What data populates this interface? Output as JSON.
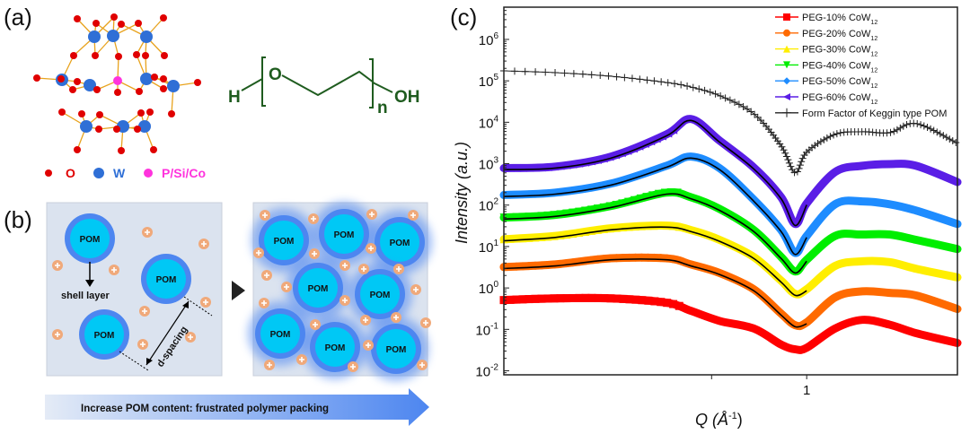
{
  "panel_a": {
    "label": "(a)",
    "legend": [
      {
        "symbol": "O",
        "color": "#e00000"
      },
      {
        "symbol": "W",
        "color": "#2f6fd6"
      },
      {
        "symbol": "P/Si/Co",
        "color": "#ff33dd"
      }
    ],
    "peg": {
      "left": "H",
      "oxygen": "O",
      "right": "OH",
      "repeat": "n",
      "color": "#1f5c1f"
    }
  },
  "panel_b": {
    "label": "(b)",
    "particle_label": "POM",
    "shell_label": "shell layer",
    "spacing_label": "d-spacing",
    "banner": "Increase POM content:  frustrated polymer packing",
    "colors": {
      "core": "#00c8f5",
      "shell": "#4d86f0",
      "ion": "#f0a97a",
      "box": "#dbe3ef"
    }
  },
  "panel_c": {
    "label": "(c)"
  },
  "chart_data": {
    "type": "line",
    "xlabel": "Q (Å",
    "xlabel_sup": "-1",
    "xlabel_end": ")",
    "ylabel": "Intensity (a.u.)",
    "x_scale": "log",
    "y_scale": "log",
    "xlim": [
      0.11,
      3.0
    ],
    "ylim": [
      0.008,
      6000000
    ],
    "x_ticks": [
      {
        "value": 0.5,
        "label": ""
      },
      {
        "value": 1,
        "label": "1"
      }
    ],
    "y_ticks": [
      {
        "value": 1000000,
        "base": "10",
        "exp": "6"
      },
      {
        "value": 100000,
        "base": "10",
        "exp": "5"
      },
      {
        "value": 10000,
        "base": "10",
        "exp": "4"
      },
      {
        "value": 1000,
        "base": "10",
        "exp": "3"
      },
      {
        "value": 100,
        "base": "10",
        "exp": "2"
      },
      {
        "value": 10,
        "base": "10",
        "exp": "1"
      },
      {
        "value": 1,
        "base": "10",
        "exp": "0"
      },
      {
        "value": 0.1,
        "base": "10",
        "exp": "-1"
      },
      {
        "value": 0.01,
        "base": "10",
        "exp": "-2"
      }
    ],
    "grid": false,
    "legend_position": "top-right",
    "x": [
      0.11,
      0.16,
      0.24,
      0.36,
      0.43,
      0.53,
      0.68,
      0.83,
      0.92,
      1.0,
      1.23,
      1.5,
      1.83,
      2.22,
      3.0
    ],
    "series": [
      {
        "name": "PEG-10% CoW",
        "sub": "12",
        "color": "#ff0000",
        "marker": "square",
        "fit": false,
        "values": [
          0.51,
          0.56,
          0.56,
          0.44,
          0.28,
          0.16,
          0.105,
          0.043,
          0.033,
          0.036,
          0.105,
          0.17,
          0.13,
          0.081,
          0.047
        ]
      },
      {
        "name": "PEG-20% CoW",
        "sub": "12",
        "color": "#ff6a00",
        "marker": "circle",
        "fit": true,
        "values": [
          3.2,
          3.7,
          5.2,
          5.2,
          3.7,
          2.3,
          0.93,
          0.24,
          0.126,
          0.148,
          0.59,
          0.83,
          0.76,
          0.66,
          0.31
        ]
      },
      {
        "name": "PEG-30% CoW",
        "sub": "12",
        "color": "#ffee00",
        "marker": "triangle-up",
        "fit": true,
        "values": [
          15,
          18,
          27.5,
          32,
          25,
          14.5,
          5.6,
          1.5,
          0.72,
          0.93,
          3.4,
          4.4,
          4.2,
          2.9,
          1.8
        ]
      },
      {
        "name": "PEG-40% CoW",
        "sub": "12",
        "color": "#00ee00",
        "marker": "triangle-down",
        "fit": true,
        "values": [
          50,
          58,
          95,
          200,
          155,
          81,
          25,
          5.6,
          2.5,
          4.8,
          18,
          19.5,
          19.5,
          14.5,
          8.7
        ]
      },
      {
        "name": "PEG-50% CoW",
        "sub": "12",
        "color": "#1e8cff",
        "marker": "diamond",
        "fit": true,
        "values": [
          175,
          200,
          330,
          890,
          1480,
          780,
          135,
          25,
          7,
          18,
          105,
          123,
          105,
          74,
          35
        ]
      },
      {
        "name": "PEG-60% CoW",
        "sub": "12",
        "color": "#5a1ee6",
        "marker": "triangle-left",
        "fit": true,
        "values": [
          780,
          850,
          1480,
          5100,
          12000,
          3600,
          810,
          155,
          35,
          110,
          630,
          890,
          980,
          890,
          360
        ]
      },
      {
        "name": "Form Factor of Keggin type POM",
        "sub": "",
        "color": "#222222",
        "marker": "plus",
        "fit": false,
        "values": [
          174000,
          158000,
          129000,
          91000,
          71000,
          44000,
          16000,
          2700,
          600,
          1900,
          5100,
          5900,
          5600,
          9300,
          3100
        ]
      }
    ]
  }
}
